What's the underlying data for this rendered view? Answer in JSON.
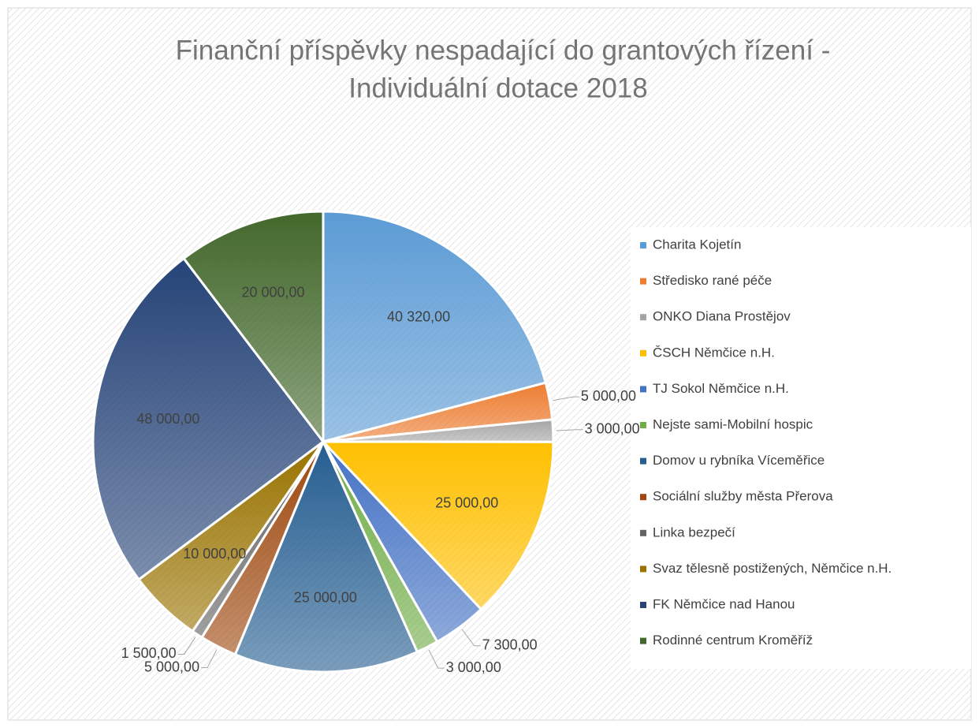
{
  "chart_data": {
    "type": "pie",
    "title": [
      "Finanční příspěvky nespadající do grantových řízení -",
      "Individuální dotace 2018"
    ],
    "categories": [
      "Charita Kojetín",
      "Středisko rané péče",
      "ONKO Diana Prostějov",
      "ČSCH Němčice n.H.",
      "TJ Sokol Němčice n.H.",
      "Nejste sami-Mobilní hospic",
      "Domov u rybníka Víceměřice",
      "Sociální služby města Přerova",
      "Linka bezpečí",
      "Svaz tělesně postižených, Němčice n.H.",
      "FK Němčice nad Hanou",
      "Rodinné centrum Kroměříž"
    ],
    "values": [
      40320,
      5000,
      3000,
      25000,
      7300,
      3000,
      25000,
      5000,
      1500,
      10000,
      48000,
      20000
    ],
    "value_labels": [
      "40 320,00",
      "5 000,00",
      "3 000,00",
      "25 000,00",
      "7 300,00",
      "3 000,00",
      "25 000,00",
      "5 000,00",
      "1 500,00",
      "10 000,00",
      "48 000,00",
      "20 000,00"
    ],
    "colors": [
      "#5b9bd5",
      "#ed7d31",
      "#a5a5a5",
      "#ffc000",
      "#4472c4",
      "#70ad47",
      "#255e91",
      "#9e480e",
      "#636363",
      "#997300",
      "#264478",
      "#43682b"
    ],
    "legend": "right"
  }
}
